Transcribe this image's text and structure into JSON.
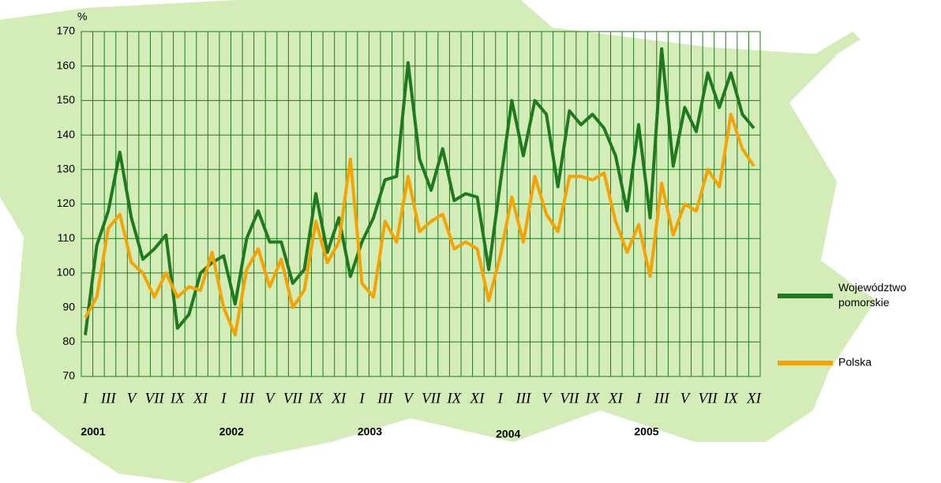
{
  "chart_data": {
    "type": "line",
    "y_label": "%",
    "categories": [
      "I",
      null,
      "III",
      null,
      "V",
      null,
      "VII",
      null,
      "IX",
      null,
      "XI",
      null,
      "I",
      null,
      "III",
      null,
      "V",
      null,
      "VII",
      null,
      "IX",
      null,
      "XI",
      null,
      "I",
      null,
      "III",
      null,
      "V",
      null,
      "VII",
      null,
      "IX",
      null,
      "XI",
      null,
      "I",
      null,
      "III",
      null,
      "V",
      null,
      "VII",
      null,
      "IX",
      null,
      "XI",
      null,
      "I",
      null,
      "III",
      null,
      "V",
      null,
      "VII",
      null,
      "IX",
      null,
      "XI"
    ],
    "years": [
      "2001",
      "2002",
      "2003",
      "2004",
      "2005"
    ],
    "series": [
      {
        "name": "Województwo pomorskie",
        "color": "#1f7a1f",
        "values": [
          82,
          108,
          118,
          135,
          116,
          104,
          107,
          111,
          84,
          88,
          100,
          103,
          105,
          91,
          110,
          118,
          109,
          109,
          97,
          101,
          123,
          106,
          116,
          99,
          109,
          116,
          127,
          128,
          161,
          133,
          124,
          136,
          121,
          123,
          122,
          101,
          126,
          150,
          134,
          150,
          146,
          125,
          147,
          143,
          146,
          142,
          134,
          118,
          143,
          116,
          165,
          131,
          148,
          141,
          158,
          148,
          158,
          146,
          142
        ]
      },
      {
        "name": "Polska",
        "color": "#f5a300",
        "values": [
          87,
          93,
          113,
          117,
          103,
          100,
          93,
          100,
          93,
          96,
          95,
          106,
          90,
          82,
          101,
          107,
          96,
          104,
          90,
          95,
          115,
          103,
          109,
          133,
          97,
          93,
          115,
          109,
          128,
          112,
          115,
          117,
          107,
          109,
          107,
          92,
          105,
          122,
          109,
          128,
          117,
          112,
          128,
          128,
          127,
          129,
          115,
          106,
          114,
          99,
          126,
          111,
          120,
          118,
          130,
          125,
          146,
          136,
          131
        ]
      }
    ],
    "ylim": [
      70,
      170
    ],
    "yticks": [
      70,
      80,
      90,
      100,
      110,
      120,
      130,
      140,
      150,
      160,
      170
    ],
    "grid": true
  }
}
